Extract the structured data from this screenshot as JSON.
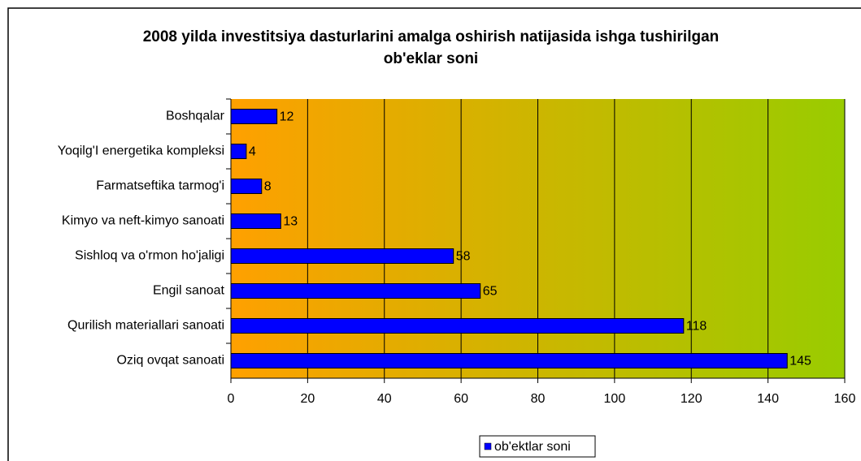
{
  "chart_data": {
    "type": "barh",
    "title": "2008 yilda investitsiya dasturlarini amalga oshirish natijasida ishga tushirilgan ob'eklar soni",
    "categories": [
      "Boshqalar",
      "Yoqilg'I energetika kompleksi",
      "Farmatseftika tarmog'i",
      "Kimyo va neft-kimyo sanoati",
      "Sishloq va o'rmon ho'jaligi",
      "Engil sanoat",
      "Qurilish materiallari sanoati",
      "Oziq ovqat sanoati"
    ],
    "series": [
      {
        "name": "ob'ektlar soni",
        "color": "#0000ff",
        "values": [
          12,
          4,
          8,
          13,
          58,
          65,
          118,
          145
        ]
      }
    ],
    "xlim": [
      0,
      160
    ],
    "xticks": [
      0,
      20,
      40,
      60,
      80,
      100,
      120,
      140,
      160
    ],
    "grid": true,
    "legend": "bottom"
  }
}
